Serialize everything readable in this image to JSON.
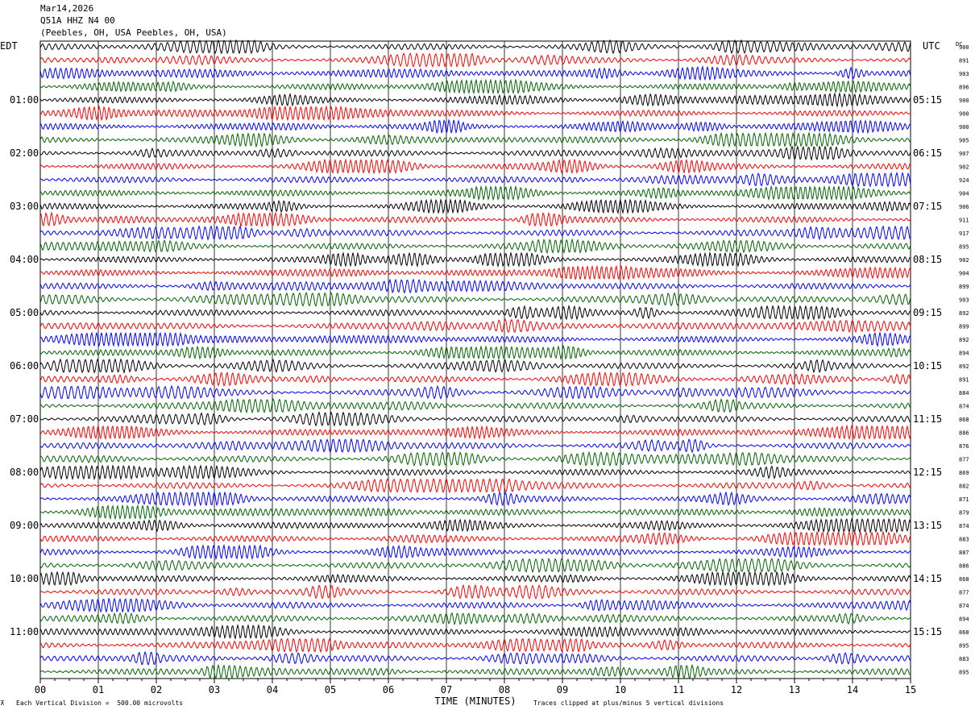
{
  "header": {
    "date": "Mar14,2026",
    "station": "Q51A HHZ N4 00",
    "location": "(Peebles, OH, USA Peebles, OH, USA)"
  },
  "left_timezone": "EDT",
  "right_timezone": "UTC",
  "dc_label": "DC",
  "footer": {
    "vertical_division": "Each Vertical Division =  500.00 microvolts",
    "xlabel": "TIME (MINUTES)",
    "clip_note": "Traces clipped at plus/minus 5 vertical divisions"
  },
  "colors": {
    "cycle": [
      "#000000",
      "#ff0000",
      "#0000ff",
      "#006400"
    ],
    "grid": "#000000"
  },
  "chart_data": {
    "type": "line",
    "title": "Q51A HHZ N4 00",
    "xlabel": "TIME (MINUTES)",
    "xlim": [
      0,
      15
    ],
    "x_ticks": [
      "00",
      "01",
      "02",
      "03",
      "04",
      "05",
      "06",
      "07",
      "08",
      "09",
      "10",
      "11",
      "12",
      "13",
      "14",
      "15"
    ],
    "rows_per_hour": 4,
    "left_hour_labels": [
      "01:00",
      "02:00",
      "03:00",
      "04:00",
      "05:00",
      "06:00",
      "07:00",
      "08:00",
      "09:00",
      "10:00",
      "11:00"
    ],
    "right_hour_labels": [
      "05:15",
      "06:15",
      "07:15",
      "08:15",
      "09:15",
      "10:15",
      "11:15",
      "12:15",
      "13:15",
      "14:15",
      "15:15"
    ],
    "dc_offsets": [
      900,
      891,
      903,
      896,
      900,
      900,
      900,
      905,
      907,
      902,
      924,
      904,
      906,
      911,
      917,
      895,
      902,
      904,
      899,
      903,
      892,
      899,
      892,
      894,
      892,
      891,
      884,
      874,
      868,
      886,
      876,
      877,
      869,
      882,
      871,
      879,
      874,
      883,
      887,
      886,
      868,
      877,
      874,
      894,
      868,
      895,
      883,
      895
    ]
  }
}
